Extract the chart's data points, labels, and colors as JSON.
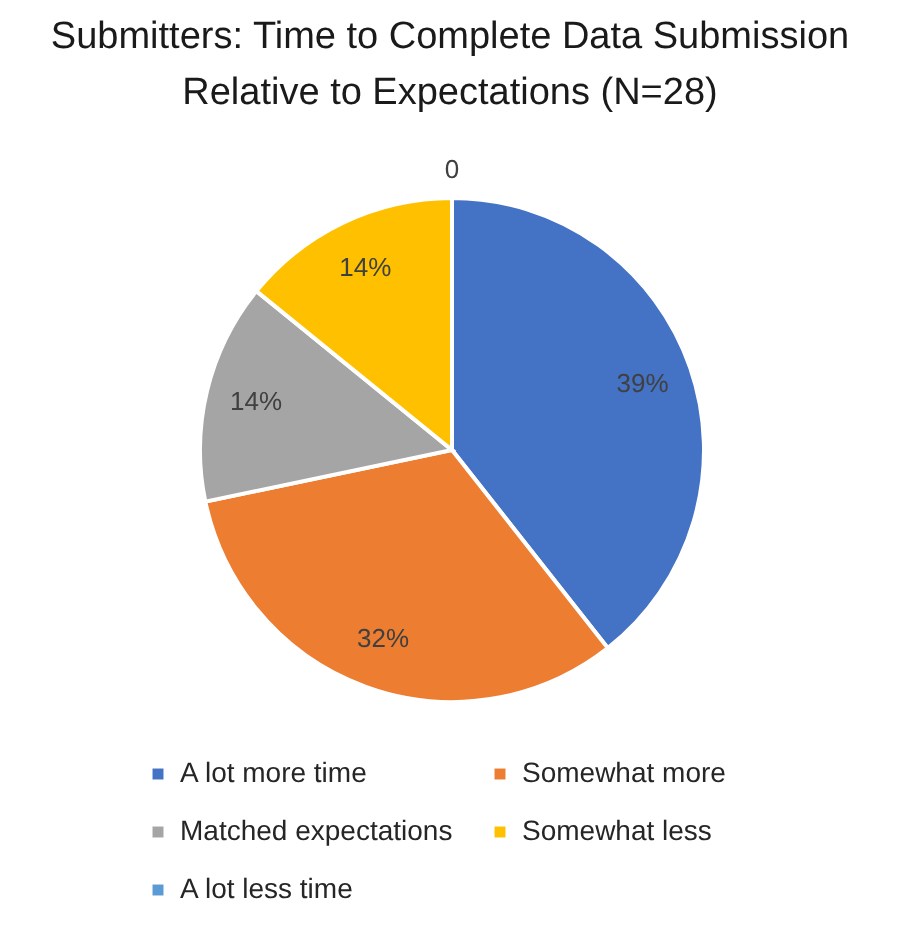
{
  "chart_data": {
    "type": "pie",
    "title": "Submitters: Time to Complete Data Submission Relative to Expectations (N=28)",
    "categories": [
      "A lot more time",
      "Somewhat more",
      "Matched expectations",
      "Somewhat less",
      "A lot less time"
    ],
    "values": [
      39,
      32,
      14,
      14,
      0
    ],
    "colors": [
      "#4472c4",
      "#ed7d31",
      "#a5a5a5",
      "#ffc000",
      "#5b9bd5"
    ],
    "value_labels": [
      "39%",
      "32%",
      "14%",
      "14%",
      "0"
    ],
    "legend": "bottom"
  }
}
